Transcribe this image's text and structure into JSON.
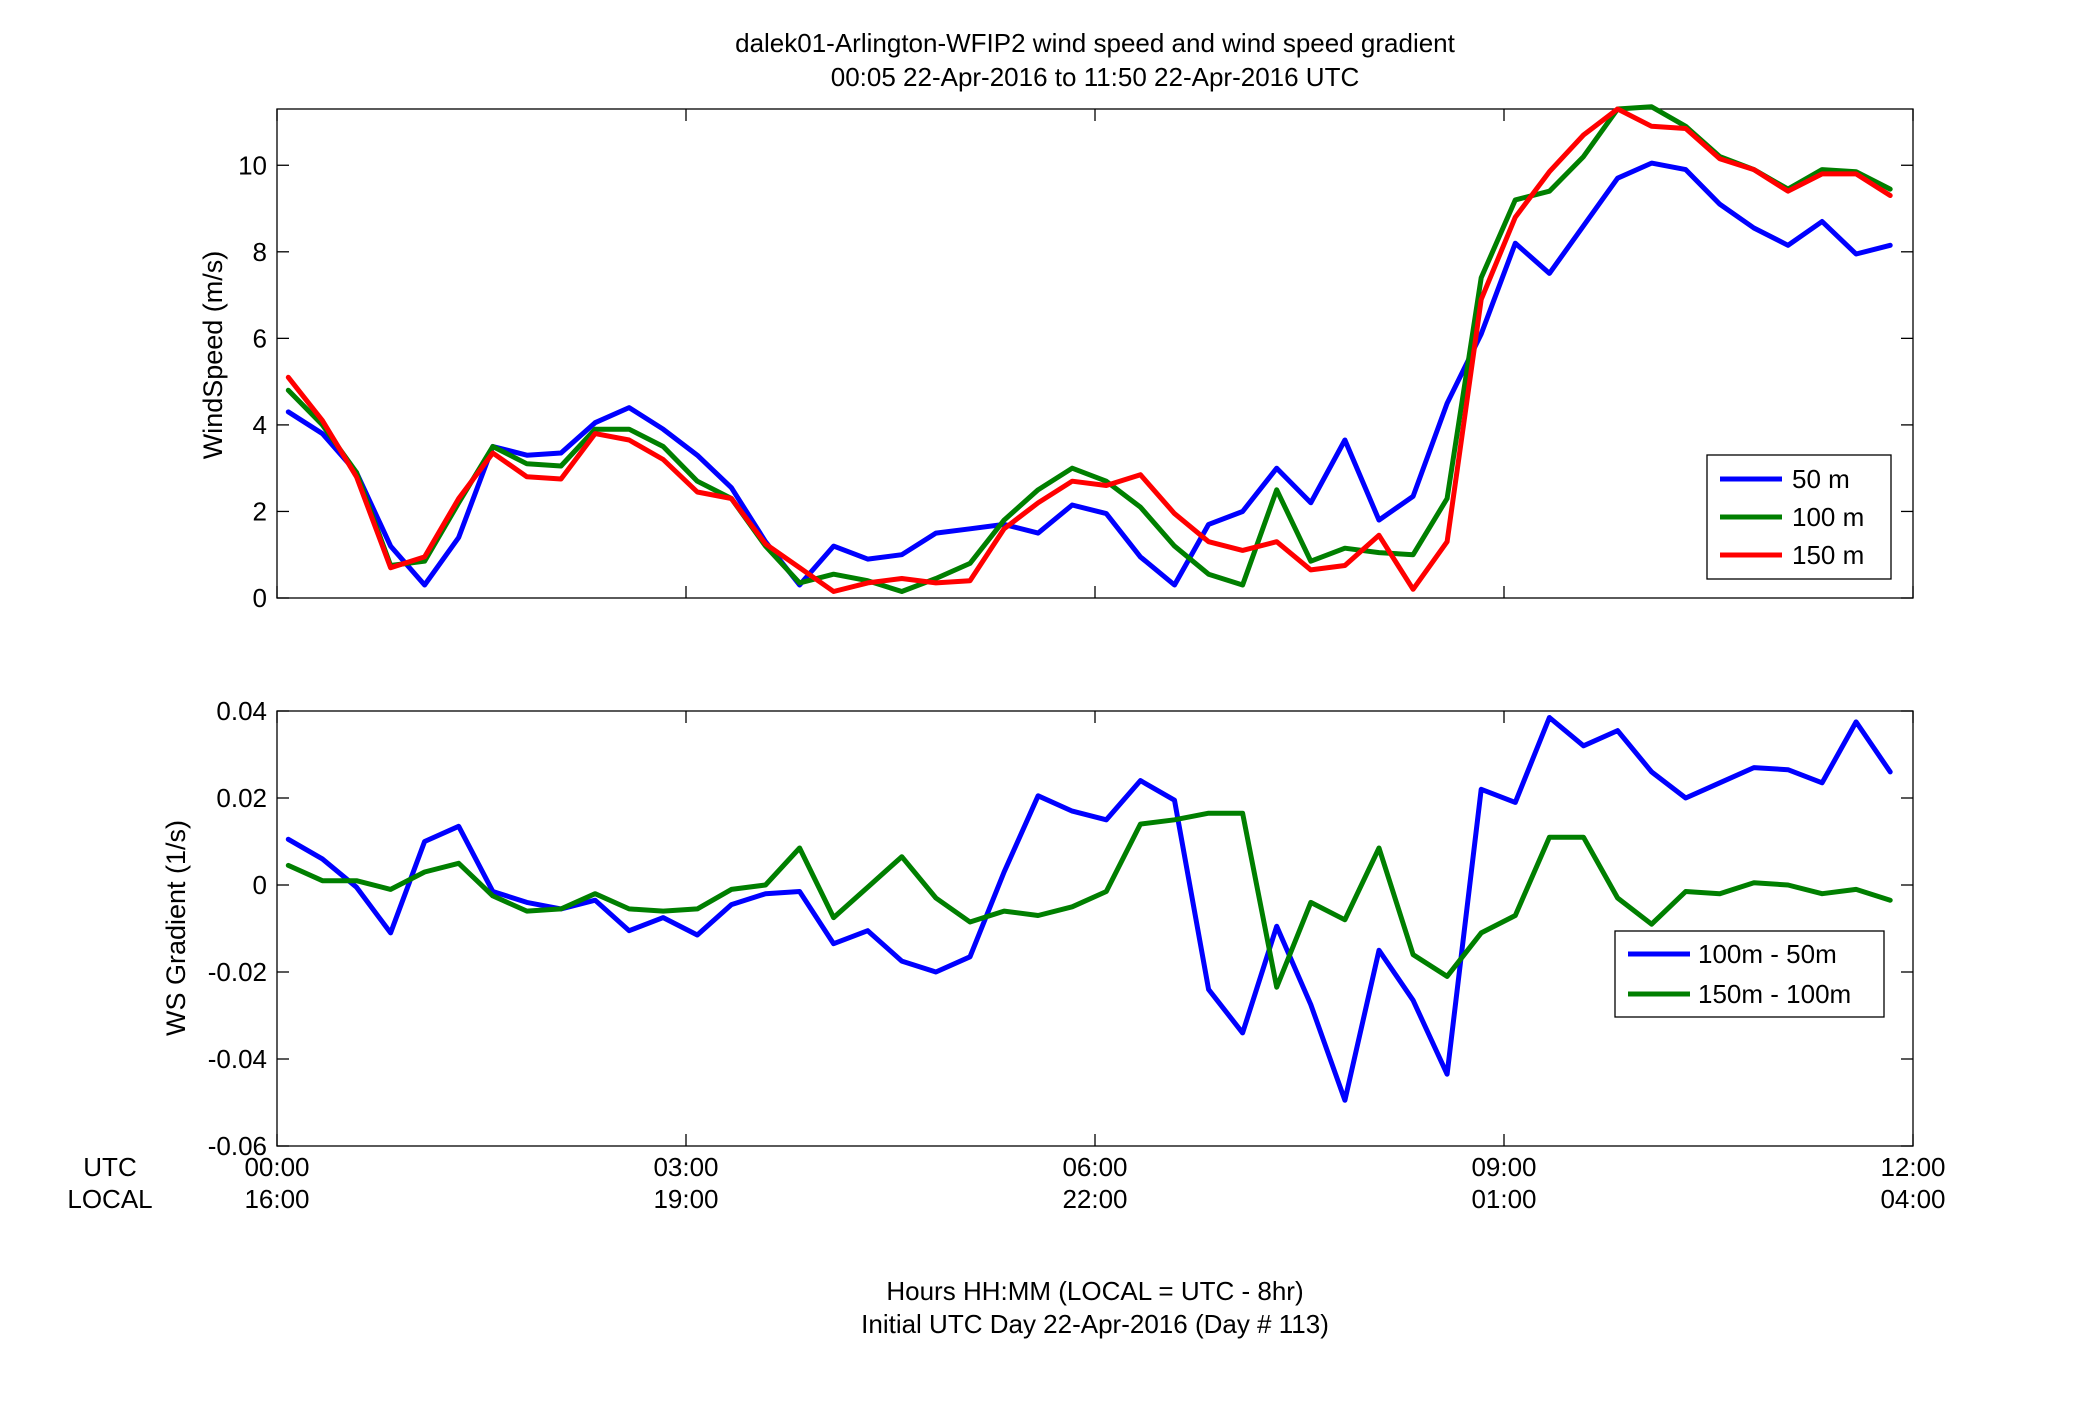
{
  "title": {
    "line1": "dalek01-Arlington-WFIP2  wind speed and wind speed gradient",
    "line2": "00:05 22-Apr-2016 to 11:50 22-Apr-2016  UTC"
  },
  "x_axis": {
    "row_labels": {
      "utc": "UTC",
      "local": "LOCAL"
    },
    "utc_ticks": [
      "00:00",
      "03:00",
      "06:00",
      "09:00",
      "12:00"
    ],
    "local_ticks": [
      "16:00",
      "19:00",
      "22:00",
      "01:00",
      "04:00"
    ],
    "footer_line1": "Hours HH:MM  (LOCAL = UTC - 8hr)",
    "footer_line2": "Initial UTC Day 22-Apr-2016 (Day # 113)"
  },
  "chart_data": [
    {
      "type": "line",
      "ylabel": "WindSpeed (m/s)",
      "xlim": [
        0,
        12
      ],
      "ylim": [
        0,
        11.3
      ],
      "yticks": [
        0,
        2,
        4,
        6,
        8,
        10
      ],
      "ytick_labels": [
        "0",
        "2",
        "4",
        "6",
        "8",
        "10"
      ],
      "legend_position": "lower-right",
      "x": [
        0.083,
        0.333,
        0.583,
        0.833,
        1.083,
        1.333,
        1.583,
        1.833,
        2.083,
        2.333,
        2.583,
        2.833,
        3.083,
        3.333,
        3.583,
        3.833,
        4.083,
        4.333,
        4.583,
        4.833,
        5.083,
        5.333,
        5.583,
        5.833,
        6.083,
        6.333,
        6.583,
        6.833,
        7.083,
        7.333,
        7.583,
        7.833,
        8.083,
        8.333,
        8.583,
        8.833,
        9.083,
        9.333,
        9.583,
        9.833,
        10.083,
        10.333,
        10.583,
        10.833,
        11.083,
        11.333,
        11.583,
        11.833
      ],
      "series": [
        {
          "name": "50 m",
          "color": "#0000ff",
          "values": [
            4.3,
            3.8,
            2.9,
            1.2,
            0.3,
            1.4,
            3.5,
            3.3,
            3.35,
            4.05,
            4.4,
            3.9,
            3.3,
            2.55,
            1.3,
            0.3,
            1.2,
            0.9,
            1.0,
            1.5,
            1.6,
            1.7,
            1.5,
            2.15,
            1.95,
            0.95,
            0.3,
            1.7,
            2.0,
            3.0,
            2.2,
            3.65,
            1.8,
            2.35,
            4.5,
            6.1,
            8.2,
            7.5,
            8.6,
            9.7,
            10.05,
            9.9,
            9.1,
            8.55,
            8.15,
            8.7,
            7.95,
            8.15
          ]
        },
        {
          "name": "100 m",
          "color": "#007f00",
          "values": [
            4.8,
            4.0,
            2.9,
            0.75,
            0.85,
            2.2,
            3.5,
            3.1,
            3.05,
            3.9,
            3.9,
            3.5,
            2.7,
            2.3,
            1.2,
            0.35,
            0.55,
            0.4,
            0.15,
            0.45,
            0.8,
            1.8,
            2.5,
            3.0,
            2.7,
            2.1,
            1.2,
            0.55,
            0.3,
            2.5,
            0.85,
            1.15,
            1.05,
            1.0,
            2.3,
            7.4,
            9.2,
            9.4,
            10.2,
            11.3,
            11.35,
            10.9,
            10.2,
            9.9,
            9.45,
            9.9,
            9.85,
            9.45
          ]
        },
        {
          "name": "150 m",
          "color": "#ff0000",
          "values": [
            5.1,
            4.1,
            2.8,
            0.7,
            0.95,
            2.3,
            3.35,
            2.8,
            2.75,
            3.8,
            3.65,
            3.2,
            2.45,
            2.3,
            1.25,
            0.7,
            0.15,
            0.35,
            0.45,
            0.35,
            0.4,
            1.6,
            2.2,
            2.7,
            2.6,
            2.85,
            1.95,
            1.3,
            1.1,
            1.3,
            0.65,
            0.75,
            1.45,
            0.2,
            1.3,
            6.9,
            8.8,
            9.85,
            10.7,
            11.3,
            10.9,
            10.85,
            10.15,
            9.9,
            9.4,
            9.8,
            9.8,
            9.3
          ]
        }
      ]
    },
    {
      "type": "line",
      "ylabel": "WS Gradient (1/s)",
      "xlim": [
        0,
        12
      ],
      "ylim": [
        -0.06,
        0.04
      ],
      "yticks": [
        -0.06,
        -0.04,
        -0.02,
        0,
        0.02,
        0.04
      ],
      "ytick_labels": [
        "-0.06",
        "-0.04",
        "-0.02",
        "0",
        "0.02",
        "0.04"
      ],
      "legend_position": "lower-right",
      "x": [
        0.083,
        0.333,
        0.583,
        0.833,
        1.083,
        1.333,
        1.583,
        1.833,
        2.083,
        2.333,
        2.583,
        2.833,
        3.083,
        3.333,
        3.583,
        3.833,
        4.083,
        4.333,
        4.583,
        4.833,
        5.083,
        5.333,
        5.583,
        5.833,
        6.083,
        6.333,
        6.583,
        6.833,
        7.083,
        7.333,
        7.583,
        7.833,
        8.083,
        8.333,
        8.583,
        8.833,
        9.083,
        9.333,
        9.583,
        9.833,
        10.083,
        10.333,
        10.583,
        10.833,
        11.083,
        11.333,
        11.583,
        11.833
      ],
      "series": [
        {
          "name": "100m - 50m",
          "color": "#0000ff",
          "values": [
            0.0105,
            0.006,
            -0.0005,
            -0.011,
            0.01,
            0.0135,
            -0.0015,
            -0.004,
            -0.0055,
            -0.0035,
            -0.0105,
            -0.0075,
            -0.0115,
            -0.0045,
            -0.002,
            -0.0015,
            -0.0135,
            -0.0105,
            -0.0175,
            -0.02,
            -0.0165,
            0.003,
            0.0205,
            0.017,
            0.015,
            0.024,
            0.0195,
            -0.024,
            -0.034,
            -0.0095,
            -0.0275,
            -0.0495,
            -0.015,
            -0.0265,
            -0.0435,
            0.022,
            0.019,
            0.0385,
            0.032,
            0.0355,
            0.026,
            0.02,
            0.0235,
            0.027,
            0.0265,
            0.0235,
            0.0375,
            0.026
          ]
        },
        {
          "name": "150m - 100m",
          "color": "#007f00",
          "values": [
            0.0045,
            0.001,
            0.001,
            -0.001,
            0.003,
            0.005,
            -0.0025,
            -0.006,
            -0.0055,
            -0.002,
            -0.0055,
            -0.006,
            -0.0055,
            -0.001,
            0.0,
            0.0085,
            -0.0075,
            -0.0005,
            0.0065,
            -0.003,
            -0.0085,
            -0.006,
            -0.007,
            -0.005,
            -0.0015,
            0.014,
            0.015,
            0.0165,
            0.0165,
            -0.0235,
            -0.004,
            -0.008,
            0.0085,
            -0.016,
            -0.021,
            -0.011,
            -0.007,
            0.011,
            0.011,
            -0.003,
            -0.009,
            -0.0015,
            -0.002,
            0.0005,
            0.0,
            -0.002,
            -0.001,
            -0.0035
          ]
        }
      ]
    }
  ]
}
